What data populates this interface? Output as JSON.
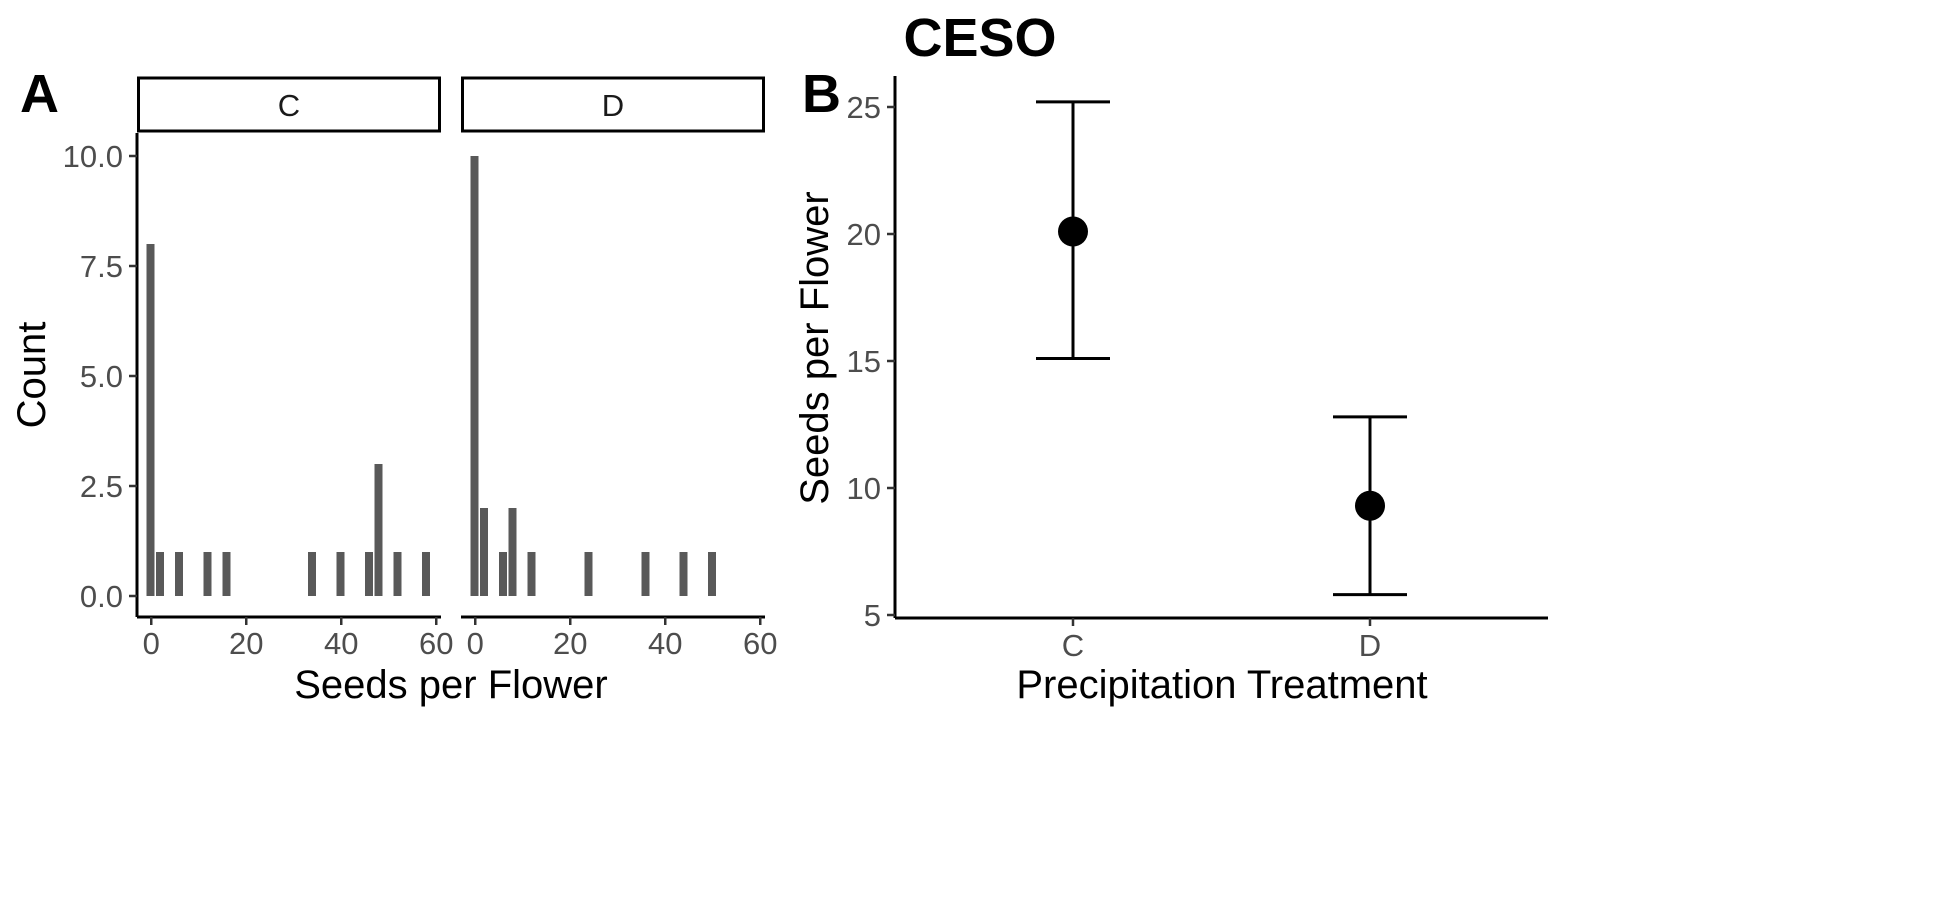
{
  "title": "CESO",
  "chart_data": [
    {
      "panel": "A",
      "type": "bar",
      "xlabel": "Seeds per Flower",
      "ylabel": "Count",
      "xlim": [
        -3,
        61
      ],
      "ylim": [
        0,
        10
      ],
      "xticks": [
        0,
        20,
        40,
        60
      ],
      "yticks": [
        0.0,
        2.5,
        5.0,
        7.5,
        10.0
      ],
      "yticklabels": [
        "0.0",
        "2.5",
        "5.0",
        "7.5",
        "10.0"
      ],
      "bin_width": 2,
      "facets": [
        {
          "label": "C",
          "bins": [
            {
              "x": 0,
              "count": 8
            },
            {
              "x": 2,
              "count": 1
            },
            {
              "x": 6,
              "count": 1
            },
            {
              "x": 12,
              "count": 1
            },
            {
              "x": 16,
              "count": 1
            },
            {
              "x": 34,
              "count": 1
            },
            {
              "x": 40,
              "count": 1
            },
            {
              "x": 46,
              "count": 1
            },
            {
              "x": 48,
              "count": 3
            },
            {
              "x": 52,
              "count": 1
            },
            {
              "x": 58,
              "count": 1
            }
          ]
        },
        {
          "label": "D",
          "bins": [
            {
              "x": 0,
              "count": 10
            },
            {
              "x": 2,
              "count": 2
            },
            {
              "x": 6,
              "count": 1
            },
            {
              "x": 8,
              "count": 2
            },
            {
              "x": 12,
              "count": 1
            },
            {
              "x": 24,
              "count": 1
            },
            {
              "x": 36,
              "count": 1
            },
            {
              "x": 44,
              "count": 1
            },
            {
              "x": 50,
              "count": 1
            }
          ]
        }
      ]
    },
    {
      "panel": "B",
      "type": "scatter",
      "xlabel": "Precipitation Treatment",
      "ylabel": "Seeds per Flower",
      "categories": [
        "C",
        "D"
      ],
      "ylim": [
        5,
        26
      ],
      "yticks": [
        5,
        10,
        15,
        20,
        25
      ],
      "points": [
        {
          "category": "C",
          "mean": 20.1,
          "lower": 15.1,
          "upper": 25.2
        },
        {
          "category": "D",
          "mean": 9.3,
          "lower": 5.8,
          "upper": 12.8
        }
      ]
    }
  ]
}
